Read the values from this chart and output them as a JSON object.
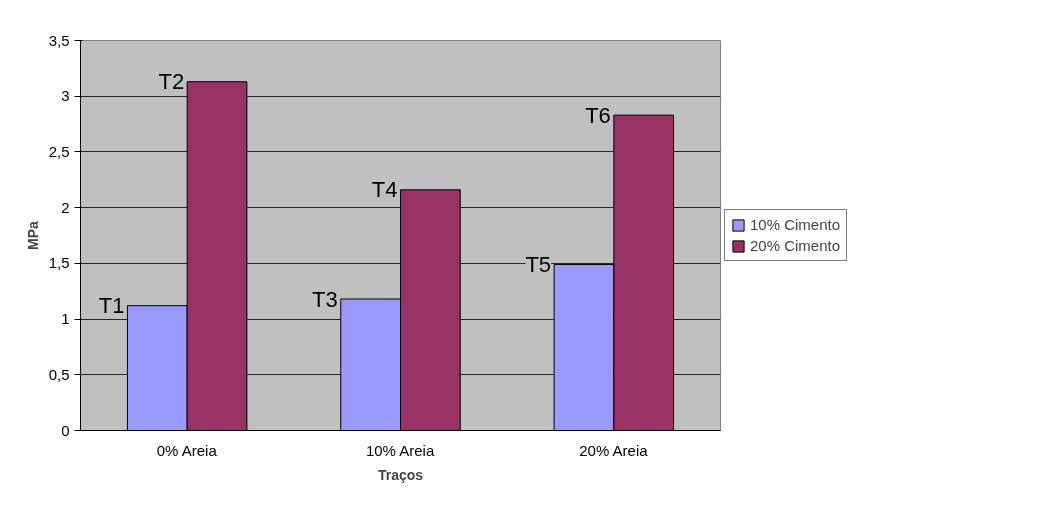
{
  "chart_data": {
    "type": "bar",
    "xlabel": "Traços",
    "ylabel": "MPa",
    "categories": [
      "0% Areia",
      "10% Areia",
      "20% Areia"
    ],
    "series": [
      {
        "name": "10% Cimento",
        "color": "#9999ff",
        "values": [
          1.12,
          1.18,
          1.49
        ]
      },
      {
        "name": "20% Cimento",
        "color": "#993366",
        "values": [
          3.13,
          2.16,
          2.83
        ]
      }
    ],
    "ylim": [
      0,
      3.5
    ],
    "yticks": [
      0,
      {
        "value": 0.5,
        "label": "0,5"
      },
      1,
      {
        "value": 1.5,
        "label": "1,5"
      },
      2,
      {
        "value": 2.5,
        "label": "2,5"
      },
      3,
      {
        "value": 3.5,
        "label": "3,5"
      }
    ],
    "grid": "y",
    "legend": "right",
    "annotations": [
      {
        "text": "T1",
        "x": "0% Areia",
        "y": 1.12
      },
      {
        "text": "T2",
        "x": "0% Areia",
        "y": 3.13
      },
      {
        "text": "T3",
        "x": "10% Areia",
        "y": 1.18
      },
      {
        "text": "T4",
        "x": "10% Areia",
        "y": 2.16
      },
      {
        "text": "T5",
        "x": "20% Areia",
        "y": 1.49
      },
      {
        "text": "T6",
        "x": "20% Areia",
        "y": 2.83
      }
    ]
  }
}
